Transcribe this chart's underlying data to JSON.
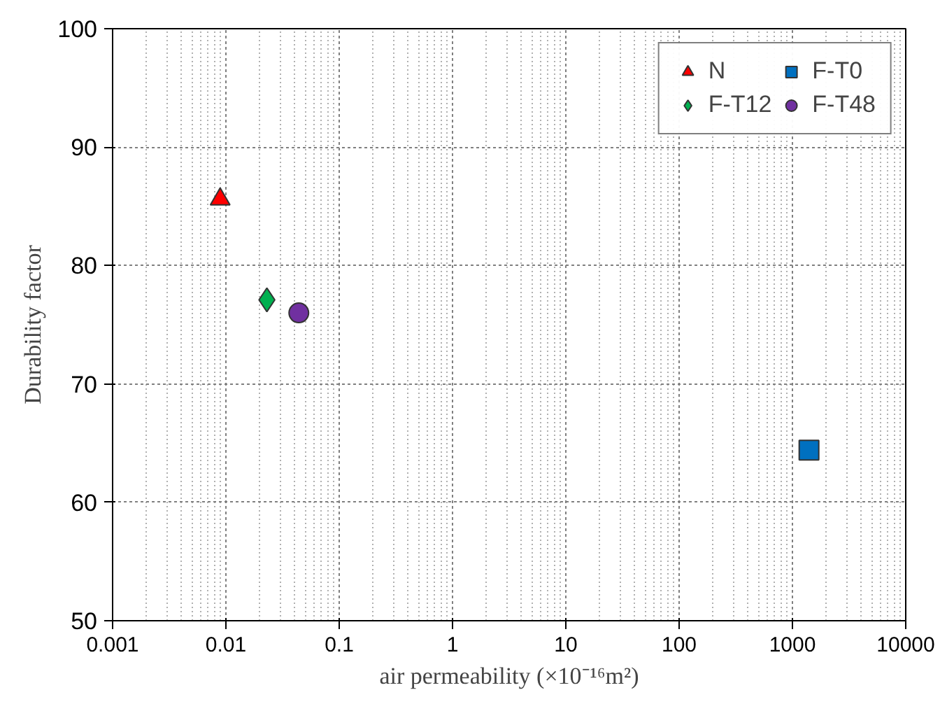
{
  "chart_data": {
    "type": "scatter",
    "xlabel": "air permeability (×10⁻¹⁶m²)",
    "ylabel": "Durability factor",
    "log": "x",
    "xlim": [
      0.001,
      10000
    ],
    "xticks": [
      0.001,
      0.01,
      0.1,
      1,
      10,
      100,
      1000,
      10000
    ],
    "ylim": [
      50,
      100
    ],
    "yticks": [
      50,
      60,
      70,
      80,
      90,
      100
    ],
    "grid": true,
    "legend": "top right",
    "series": [
      {
        "name": "N",
        "color": "#ff0000",
        "marker": "triangle",
        "x": [
          0.0089
        ],
        "values": [
          85.6
        ]
      },
      {
        "name": "F-T0",
        "color": "#0070c0",
        "marker": "square",
        "x": [
          1400
        ],
        "values": [
          64.4
        ]
      },
      {
        "name": "F-T12",
        "color": "#00b050",
        "marker": "diamond",
        "x": [
          0.023
        ],
        "values": [
          77.1
        ]
      },
      {
        "name": "F-T48",
        "color": "#7030a0",
        "marker": "circle",
        "x": [
          0.044
        ],
        "values": [
          76.0
        ]
      }
    ]
  }
}
